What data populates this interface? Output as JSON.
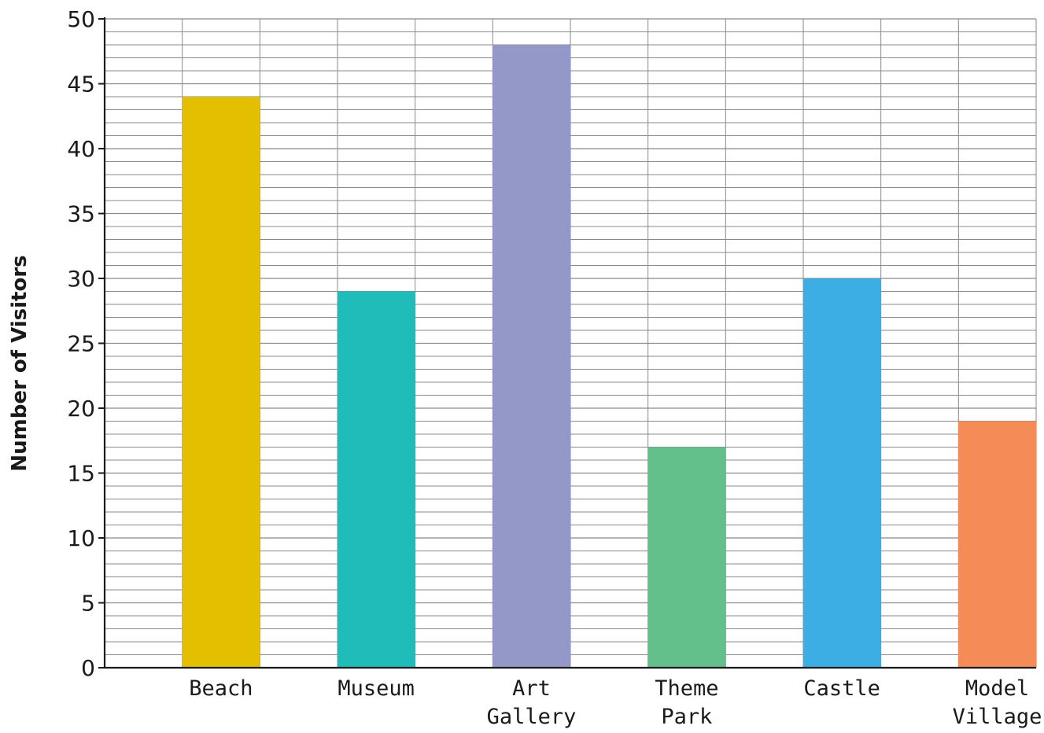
{
  "chart_data": {
    "type": "bar",
    "title": "",
    "xlabel": "",
    "ylabel": "Number of Visitors",
    "categories": [
      "Beach",
      "Museum",
      "Art Gallery",
      "Theme Park",
      "Castle",
      "Model Village"
    ],
    "category_lines": [
      [
        "Beach"
      ],
      [
        "Museum"
      ],
      [
        "Art",
        "Gallery"
      ],
      [
        "Theme",
        "Park"
      ],
      [
        "Castle"
      ],
      [
        "Model",
        "Village"
      ]
    ],
    "values": [
      44,
      29,
      48,
      17,
      30,
      19
    ],
    "colors": [
      "#e3bf00",
      "#20bcba",
      "#9398c9",
      "#63c08b",
      "#3daee4",
      "#f58c58"
    ],
    "ylim": [
      0,
      50
    ],
    "yticks": [
      0,
      5,
      10,
      15,
      20,
      25,
      30,
      35,
      40,
      45,
      50
    ],
    "minor_step": 1,
    "grid": true,
    "legend": "none"
  }
}
